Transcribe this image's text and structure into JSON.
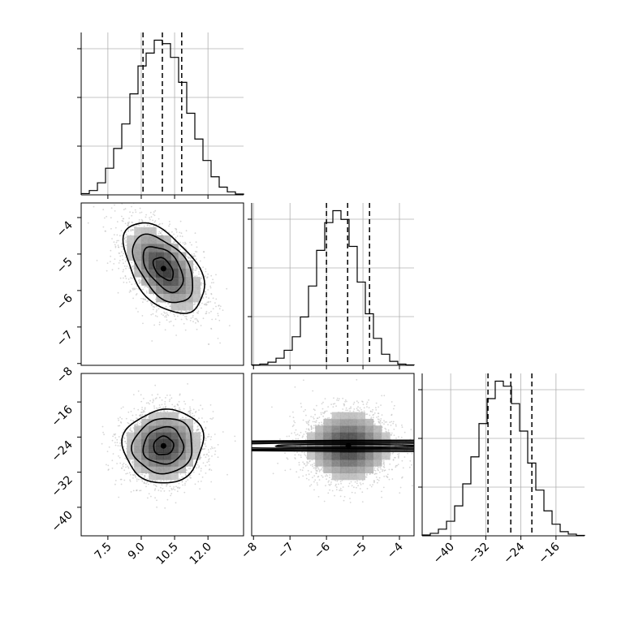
{
  "chart_data": {
    "type": "corner",
    "parameters": [
      {
        "range": [
          6.3,
          13.6
        ],
        "ticks": [
          7.5,
          9.0,
          10.5,
          12.0
        ],
        "tick_labels": [
          "7.5",
          "9.0",
          "10.5",
          "12.0"
        ],
        "quantiles": [
          9.08,
          9.95,
          10.82
        ]
      },
      {
        "range": [
          -8.05,
          -3.6
        ],
        "ticks": [
          -8,
          -7,
          -6,
          -5,
          -4
        ],
        "tick_labels": [
          "−8",
          "−7",
          "−6",
          "−5",
          "−4"
        ],
        "quantiles": [
          -6.0,
          -5.42,
          -4.82
        ]
      },
      {
        "range": [
          -46.5,
          -9.5
        ],
        "ticks": [
          -40,
          -32,
          -24,
          -16
        ],
        "tick_labels": [
          "−40",
          "−32",
          "−24",
          "−16"
        ],
        "quantiles": [
          -31.5,
          -26.3,
          -21.5
        ]
      }
    ],
    "histograms": [
      {
        "counts": [
          3,
          10,
          28,
          62,
          108,
          165,
          235,
          300,
          330,
          360,
          352,
          320,
          262,
          190,
          130,
          80,
          42,
          18,
          7,
          2
        ]
      },
      {
        "counts": [
          1,
          3,
          8,
          18,
          38,
          72,
          122,
          200,
          290,
          360,
          390,
          368,
          300,
          210,
          130,
          68,
          28,
          10,
          3,
          1
        ]
      },
      {
        "counts": [
          2,
          6,
          16,
          35,
          72,
          125,
          190,
          270,
          330,
          372,
          360,
          318,
          252,
          175,
          110,
          60,
          28,
          10,
          4,
          1
        ]
      }
    ],
    "pairs": [
      {
        "x": 0,
        "y": 1,
        "center": [
          10.0,
          -5.4
        ],
        "sd": [
          0.9,
          0.62
        ],
        "corr": -0.5
      },
      {
        "x": 0,
        "y": 2,
        "center": [
          10.0,
          -26.0
        ],
        "sd": [
          0.9,
          4.2
        ],
        "corr": 0.05
      },
      {
        "x": 1,
        "y": 2,
        "center": [
          -5.4,
          -26.0
        ],
        "sd": [
          0.62,
          4.2
        ],
        "corr": 0.0
      }
    ],
    "contour_levels_sigma": [
      0.5,
      1.0,
      1.5,
      2.0
    ],
    "grid": true,
    "colors": {
      "line": "#000000",
      "grid": "#b0b0b0",
      "points": "#bdbdbd"
    }
  }
}
